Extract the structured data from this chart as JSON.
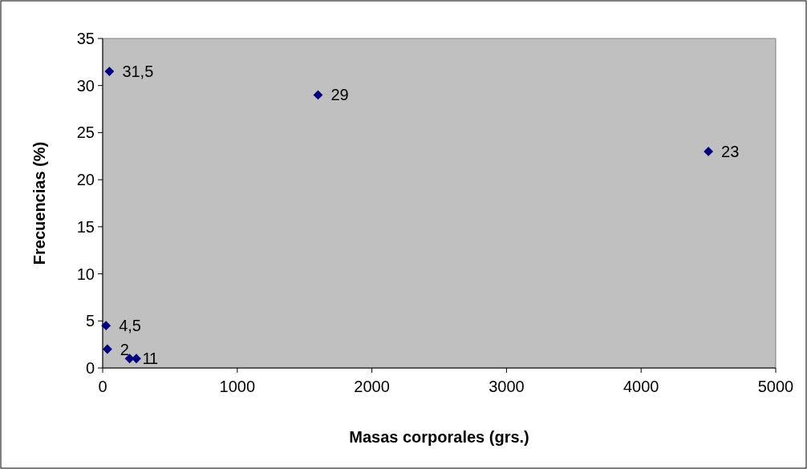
{
  "chart_data": {
    "type": "scatter",
    "xlabel": "Masas corporales (grs.)",
    "ylabel": "Frecuencias (%)",
    "x": [
      50,
      1600,
      4500,
      25,
      35,
      200,
      250
    ],
    "values": [
      31.5,
      29,
      23,
      4.5,
      2,
      1,
      1
    ],
    "value_labels": [
      "31,5",
      "29",
      "23",
      "4,5",
      "2",
      "1",
      "1"
    ],
    "color": "#000080",
    "marker": "diamond",
    "xlim": [
      0,
      5000
    ],
    "xticks": [
      0,
      1000,
      2000,
      3000,
      4000,
      5000
    ],
    "ylim": [
      0,
      35
    ],
    "yticks": [
      0,
      5,
      10,
      15,
      20,
      25,
      30,
      35
    ],
    "grid": false
  }
}
